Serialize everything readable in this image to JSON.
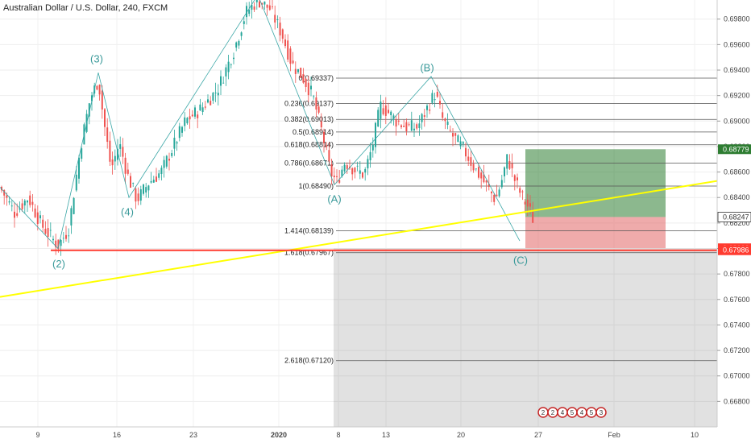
{
  "header": {
    "title": "Australian Dollar / U.S. Dollar, 240, FXCM"
  },
  "colors": {
    "up": "#26a69a",
    "down": "#ef5350",
    "trendline": "#ffff00",
    "support": "#ff3b30",
    "wave": "#3aa6a6",
    "fib": "#9e9e9e",
    "profit_zone": "#2e7d32",
    "loss_zone": "#e57373",
    "gray_zone": "#5a5a5a"
  },
  "chart_data": {
    "type": "candlestick",
    "y_range": [
      0.666,
      0.6995
    ],
    "x_range": [
      0,
      890
    ],
    "y_ticks": [
      "0.69800",
      "0.69600",
      "0.69400",
      "0.69200",
      "0.69000",
      "0.68800",
      "0.68600",
      "0.68400",
      "0.68200",
      "0.68000",
      "0.67800",
      "0.67600",
      "0.67400",
      "0.67200",
      "0.67000",
      "0.66800"
    ],
    "x_ticks": [
      {
        "label": "9",
        "x": 47
      },
      {
        "label": "16",
        "x": 145
      },
      {
        "label": "23",
        "x": 240
      },
      {
        "label": "2020",
        "x": 346
      },
      {
        "label": "8",
        "x": 420
      },
      {
        "label": "13",
        "x": 479
      },
      {
        "label": "20",
        "x": 572
      },
      {
        "label": "27",
        "x": 668
      },
      {
        "label": "Feb",
        "x": 762
      },
      {
        "label": "10",
        "x": 862
      }
    ],
    "price_path": [
      [
        0,
        0.6848
      ],
      [
        18,
        0.6828
      ],
      [
        35,
        0.684
      ],
      [
        52,
        0.6818
      ],
      [
        72,
        0.6802
      ],
      [
        85,
        0.6815
      ],
      [
        100,
        0.688
      ],
      [
        112,
        0.6918
      ],
      [
        122,
        0.6932
      ],
      [
        130,
        0.6895
      ],
      [
        138,
        0.6862
      ],
      [
        148,
        0.6883
      ],
      [
        158,
        0.6858
      ],
      [
        170,
        0.6838
      ],
      [
        185,
        0.6852
      ],
      [
        200,
        0.686
      ],
      [
        215,
        0.688
      ],
      [
        230,
        0.69
      ],
      [
        250,
        0.691
      ],
      [
        270,
        0.6925
      ],
      [
        290,
        0.6955
      ],
      [
        305,
        0.6985
      ],
      [
        320,
        0.6995
      ],
      [
        335,
        0.6988
      ],
      [
        350,
        0.6968
      ],
      [
        362,
        0.6945
      ],
      [
        375,
        0.6935
      ],
      [
        388,
        0.692
      ],
      [
        400,
        0.689
      ],
      [
        410,
        0.686
      ],
      [
        418,
        0.6852
      ],
      [
        428,
        0.6868
      ],
      [
        440,
        0.6862
      ],
      [
        452,
        0.6858
      ],
      [
        462,
        0.688
      ],
      [
        472,
        0.6912
      ],
      [
        480,
        0.6908
      ],
      [
        492,
        0.69
      ],
      [
        505,
        0.6895
      ],
      [
        518,
        0.6895
      ],
      [
        530,
        0.691
      ],
      [
        540,
        0.6922
      ],
      [
        550,
        0.69
      ],
      [
        562,
        0.6888
      ],
      [
        575,
        0.6878
      ],
      [
        590,
        0.6862
      ],
      [
        605,
        0.6848
      ],
      [
        615,
        0.6838
      ],
      [
        622,
        0.6852
      ],
      [
        630,
        0.6872
      ],
      [
        638,
        0.6855
      ],
      [
        648,
        0.684
      ],
      [
        656,
        0.6832
      ],
      [
        662,
        0.6822
      ]
    ],
    "trendline": {
      "start": [
        0,
        0.6762
      ],
      "end": [
        890,
        0.6853
      ]
    },
    "support_line": {
      "price": 0.67986,
      "from_x": 63,
      "to_x": 890
    },
    "fib_levels": [
      {
        "label": "0(0.69337)",
        "price": 0.69337
      },
      {
        "label": "0.236(0.69137)",
        "price": 0.69137
      },
      {
        "label": "0.382(0.69013)",
        "price": 0.69013
      },
      {
        "label": "0.5(0.68914)",
        "price": 0.68914
      },
      {
        "label": "0.618(0.68814)",
        "price": 0.68814
      },
      {
        "label": "0.786(0.68671)",
        "price": 0.68671
      },
      {
        "label": "1(0.68490)",
        "price": 0.6849
      },
      {
        "label": "1.414(0.68139)",
        "price": 0.68139
      },
      {
        "label": "1.618(0.67967)",
        "price": 0.67967
      },
      {
        "label": "2.618(0.67120)",
        "price": 0.6712
      }
    ],
    "fib_x_range": [
      417,
      890
    ],
    "wave_labels": [
      {
        "label": "(2)",
        "x": 73,
        "price": 0.6785
      },
      {
        "label": "(3)",
        "x": 120,
        "price": 0.6946
      },
      {
        "label": "(4)",
        "x": 158,
        "price": 0.6826
      },
      {
        "label": "(A)",
        "x": 415,
        "price": 0.6836
      },
      {
        "label": "(B)",
        "x": 530,
        "price": 0.6939
      },
      {
        "label": "(C)",
        "x": 646,
        "price": 0.6788
      }
    ],
    "wave_lines": [
      [
        [
          0,
          0.6848
        ],
        [
          72,
          0.68
        ],
        [
          122,
          0.6938
        ],
        [
          160,
          0.684
        ],
        [
          320,
          0.6999
        ],
        [
          415,
          0.685
        ],
        [
          535,
          0.6935
        ],
        [
          645,
          0.6806
        ]
      ]
    ],
    "current_price": "0.68248",
    "price_markers": [
      {
        "label": "0.68779",
        "price": 0.68779,
        "color": "#2e7d32",
        "text": "#ffffff"
      },
      {
        "label": "0.68248",
        "price": 0.68248,
        "color": "#e0e0e0",
        "text": "#333333"
      },
      {
        "label": "0.68247",
        "price": 0.68247,
        "color": "#ffffff",
        "text": "#333333",
        "border": "#333333"
      },
      {
        "label": "0.68002",
        "price": 0.68002,
        "color": "#ff3b30",
        "text": "#ffffff"
      },
      {
        "label": "0.67986",
        "price": 0.67986,
        "color": "#ff3b30",
        "text": "#ffffff"
      }
    ],
    "position": {
      "entry": 0.68247,
      "target": 0.68779,
      "stop": 0.68002,
      "x_from": 652,
      "x_to": 826
    },
    "gray_zone": {
      "x_from": 414,
      "x_to": 890,
      "price_top": 0.68,
      "price_bottom": 0.666
    },
    "events": [
      "2",
      "2",
      "4",
      "5",
      "4",
      "5",
      "3"
    ]
  }
}
